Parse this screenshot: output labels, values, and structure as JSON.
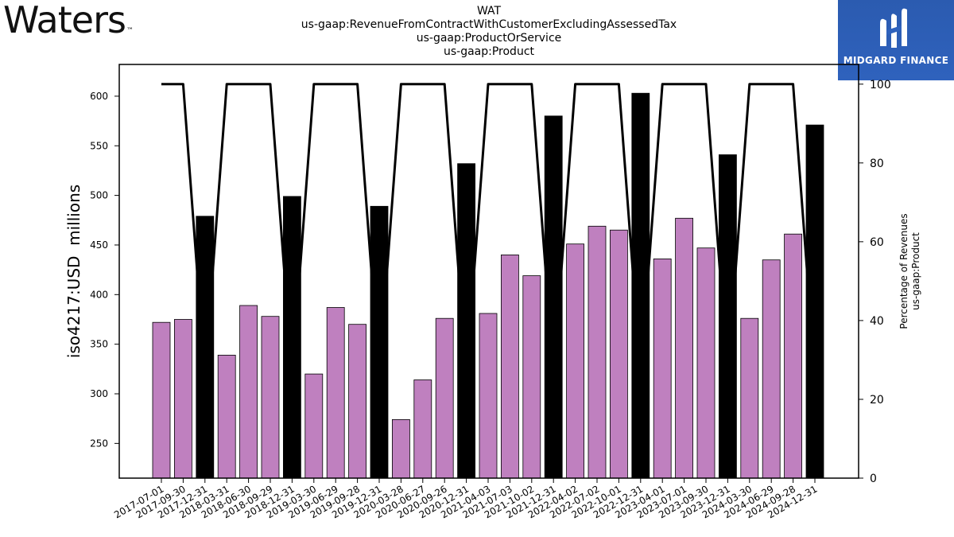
{
  "header": {
    "logo_text": "Waters",
    "logo_tm": "™",
    "title_lines": [
      "WAT",
      "us-gaap:RevenueFromContractWithCustomerExcludingAssessedTax",
      "us-gaap:ProductOrService",
      "us-gaap:Product"
    ],
    "badge_text": "MIDGARD FINANCE"
  },
  "colors": {
    "quarter_bar": "#bf80bf",
    "annual_bar": "#000000",
    "line": "#000000",
    "badge_bg": "#2f62bd"
  },
  "chart_data": {
    "type": "bar",
    "ylabel": "iso4217:USD  millions",
    "y2label_lines": [
      "Percentage of Revenues",
      "us-gaap:Product"
    ],
    "ylim": [
      215,
      632
    ],
    "y2lim": [
      0,
      105
    ],
    "yticks": [
      250,
      300,
      350,
      400,
      450,
      500,
      550,
      600
    ],
    "y2ticks": [
      0,
      20,
      40,
      60,
      80,
      100
    ],
    "categories": [
      "2017-07-01",
      "2017-09-30",
      "2017-12-31",
      "2018-03-31",
      "2018-06-30",
      "2018-09-29",
      "2018-12-31",
      "2019-03-30",
      "2019-06-29",
      "2019-09-28",
      "2019-12-31",
      "2020-03-28",
      "2020-06-27",
      "2020-09-26",
      "2020-12-31",
      "2021-04-03",
      "2021-07-03",
      "2021-10-02",
      "2021-12-31",
      "2022-04-02",
      "2022-07-02",
      "2022-10-01",
      "2022-12-31",
      "2023-04-01",
      "2023-07-01",
      "2023-09-30",
      "2023-12-31",
      "2024-03-30",
      "2024-06-29",
      "2024-09-28",
      "2024-12-31"
    ],
    "series": [
      {
        "values": [
          372,
          375,
          479,
          339,
          389,
          378,
          499,
          320,
          387,
          370,
          489,
          274,
          314,
          376,
          532,
          381,
          440,
          419,
          580,
          451,
          469,
          465,
          603,
          436,
          477,
          447,
          541,
          376,
          435,
          461,
          571
        ],
        "kind": [
          "quarter",
          "quarter",
          "annual",
          "quarter",
          "quarter",
          "quarter",
          "annual",
          "quarter",
          "quarter",
          "quarter",
          "annual",
          "quarter",
          "quarter",
          "quarter",
          "annual",
          "quarter",
          "quarter",
          "quarter",
          "annual",
          "quarter",
          "quarter",
          "quarter",
          "annual",
          "quarter",
          "quarter",
          "quarter",
          "annual",
          "quarter",
          "quarter",
          "quarter",
          "annual"
        ]
      },
      {
        "axis": "right",
        "type": "line",
        "values": [
          100,
          100,
          26,
          100,
          100,
          100,
          26,
          100,
          100,
          100,
          26,
          100,
          100,
          100,
          26,
          100,
          100,
          100,
          26,
          100,
          100,
          100,
          26,
          100,
          100,
          100,
          26,
          100,
          100,
          100,
          26
        ]
      }
    ],
    "grid": false
  }
}
